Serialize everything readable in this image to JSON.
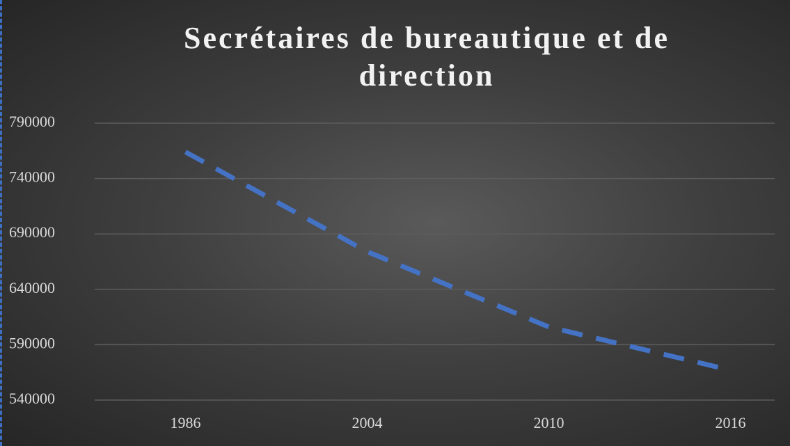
{
  "chart_data": {
    "type": "line",
    "title": "Secrétaires de bureautique et de direction",
    "categories": [
      "1986",
      "2004",
      "2010",
      "2016"
    ],
    "series": [
      {
        "name": "Secrétaires de bureautique et de direction",
        "color": "#4472c4",
        "values": [
          764000,
          674000,
          606000,
          567000
        ]
      }
    ],
    "ylim": [
      540000,
      790000
    ],
    "yticks": [
      540000,
      590000,
      640000,
      690000,
      740000,
      790000
    ],
    "grid": true,
    "line_style": "dashed"
  }
}
